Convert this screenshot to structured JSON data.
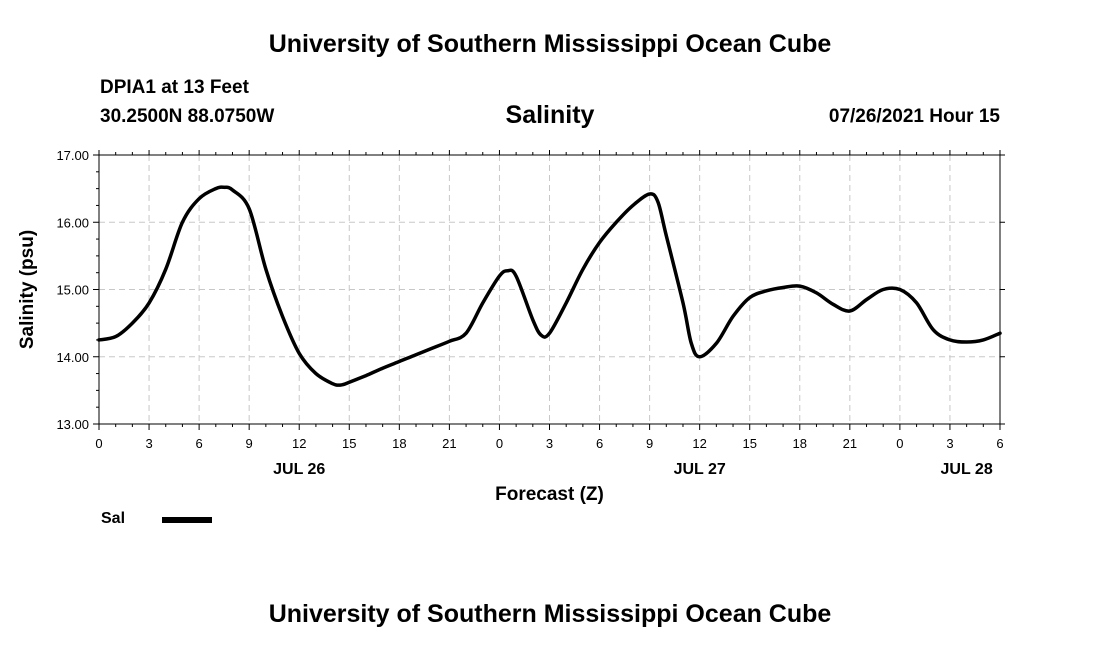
{
  "header": {
    "title": "University of Southern Mississippi Ocean Cube",
    "station": "DPIA1 at 13 Feet",
    "coordinates": "30.2500N  88.0750W",
    "datetime": "07/26/2021 Hour 15"
  },
  "footer": {
    "title": "University of Southern Mississippi Ocean Cube"
  },
  "chart_data": {
    "type": "line",
    "title": "Salinity",
    "xlabel": "Forecast (Z)",
    "ylabel": "Salinity (psu)",
    "ylim": [
      13,
      17
    ],
    "xlim": [
      0,
      54
    ],
    "grid": true,
    "legend": "bottom-left",
    "y_ticks": [
      "13.00",
      "14.00",
      "15.00",
      "16.00",
      "17.00"
    ],
    "x_ticks": [
      {
        "hour": 0,
        "label": "0"
      },
      {
        "hour": 3,
        "label": "3"
      },
      {
        "hour": 6,
        "label": "6"
      },
      {
        "hour": 9,
        "label": "9"
      },
      {
        "hour": 12,
        "label": "12"
      },
      {
        "hour": 15,
        "label": "15"
      },
      {
        "hour": 18,
        "label": "18"
      },
      {
        "hour": 21,
        "label": "21"
      },
      {
        "hour": 24,
        "label": "0"
      },
      {
        "hour": 27,
        "label": "3"
      },
      {
        "hour": 30,
        "label": "6"
      },
      {
        "hour": 33,
        "label": "9"
      },
      {
        "hour": 36,
        "label": "12"
      },
      {
        "hour": 39,
        "label": "15"
      },
      {
        "hour": 42,
        "label": "18"
      },
      {
        "hour": 45,
        "label": "21"
      },
      {
        "hour": 48,
        "label": "0"
      },
      {
        "hour": 51,
        "label": "3"
      },
      {
        "hour": 54,
        "label": "6"
      }
    ],
    "date_labels": [
      {
        "hour": 12,
        "label": "JUL 26"
      },
      {
        "hour": 36,
        "label": "JUL 27"
      },
      {
        "hour": 52,
        "label": "JUL 28"
      }
    ],
    "series": [
      {
        "name": "Sal",
        "color": "#000000",
        "x": [
          0,
          1,
          2,
          3,
          4,
          5,
          6,
          7,
          7.5,
          8,
          9,
          10,
          11,
          12,
          13,
          14,
          14.5,
          15,
          16,
          17,
          18,
          19,
          20,
          21,
          22,
          23,
          24,
          24.5,
          25,
          26,
          26.5,
          27,
          28,
          29,
          30,
          31,
          32,
          33,
          33.5,
          34,
          35,
          35.5,
          36,
          37,
          38,
          39,
          40,
          41,
          42,
          43,
          44,
          45,
          46,
          47,
          48,
          49,
          50,
          51,
          52,
          53,
          54
        ],
        "y": [
          14.25,
          14.3,
          14.5,
          14.8,
          15.3,
          16.0,
          16.35,
          16.5,
          16.52,
          16.48,
          16.2,
          15.3,
          14.6,
          14.05,
          13.75,
          13.6,
          13.58,
          13.62,
          13.72,
          13.83,
          13.93,
          14.03,
          14.13,
          14.23,
          14.35,
          14.8,
          15.2,
          15.28,
          15.2,
          14.55,
          14.32,
          14.35,
          14.8,
          15.3,
          15.7,
          16.0,
          16.25,
          16.42,
          16.3,
          15.8,
          14.8,
          14.2,
          14.0,
          14.2,
          14.6,
          14.88,
          14.98,
          15.03,
          15.05,
          14.95,
          14.78,
          14.68,
          14.85,
          15.0,
          15.0,
          14.8,
          14.4,
          14.25,
          14.22,
          14.25,
          14.35
        ]
      }
    ]
  }
}
